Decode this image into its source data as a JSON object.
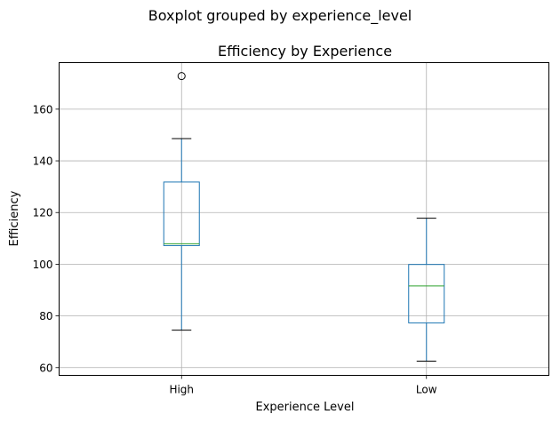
{
  "chart_data": {
    "type": "boxplot",
    "suptitle": "Boxplot grouped by experience_level",
    "title": "Efficiency by Experience",
    "xlabel": "Experience Level",
    "ylabel": "Efficiency",
    "categories": [
      "High",
      "Low"
    ],
    "ylim": [
      57,
      178
    ],
    "yticks": [
      60,
      80,
      100,
      120,
      140,
      160
    ],
    "grid": true,
    "boxes": [
      {
        "category": "High",
        "whisker_low": 74.5,
        "q1": 107.2,
        "median": 107.9,
        "q3": 131.8,
        "whisker_high": 148.6,
        "outliers": [
          172.8
        ]
      },
      {
        "category": "Low",
        "whisker_low": 62.5,
        "q1": 77.3,
        "median": 91.6,
        "q3": 99.9,
        "whisker_high": 117.8,
        "outliers": []
      }
    ],
    "colors": {
      "box": "#1f77b4",
      "median": "#2ca02c",
      "whisker": "#1f77b4",
      "cap": "#000000",
      "grid": "#b0b0b0",
      "flier": "#000000"
    }
  }
}
